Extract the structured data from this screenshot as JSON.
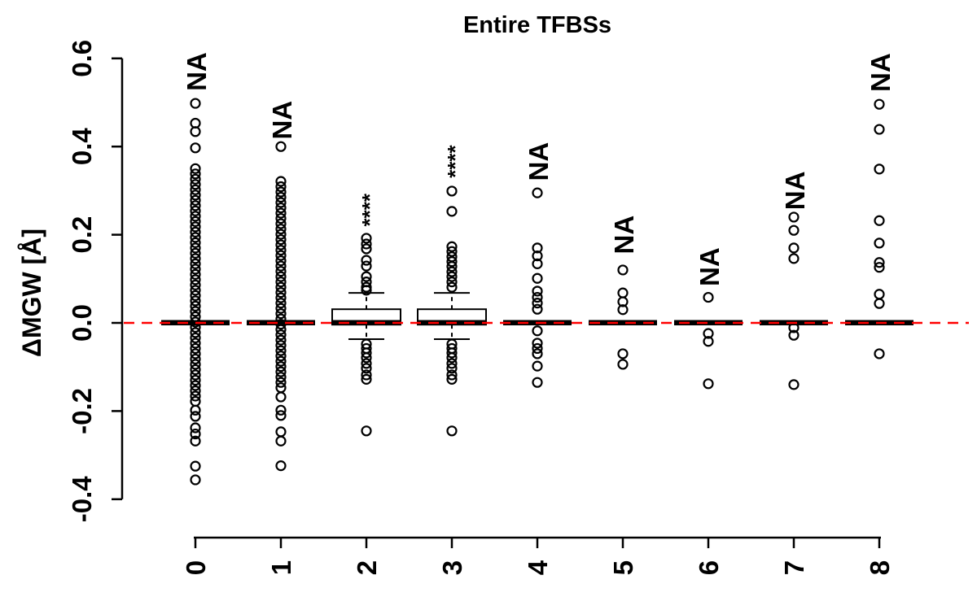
{
  "chart_data": {
    "type": "boxplot",
    "title": "Entire TFBSs",
    "ylabel": "ΔMGW [Å]",
    "xlabel": "",
    "ylim": [
      -0.45,
      0.62
    ],
    "yticks": [
      0.6,
      0.4,
      0.2,
      0.0,
      -0.2,
      -0.4
    ],
    "ytick_labels": [
      "0.6",
      "0.4",
      "0.2",
      "0.0",
      "-0.2",
      "-0.4"
    ],
    "categories": [
      "0",
      "1",
      "2",
      "3",
      "4",
      "5",
      "6",
      "7",
      "8"
    ],
    "grid": false,
    "legend": null,
    "zero_line": {
      "value": 0.0,
      "color": "#ff0000",
      "style": "dashed"
    },
    "colors": {
      "foreground": "#000000",
      "background": "#ffffff",
      "box_fill": "#ffffff"
    },
    "groups": [
      {
        "category": "0",
        "box": {
          "median": 0.0,
          "q1": 0.0,
          "q3": 0.0,
          "whisker_low": 0.0,
          "whisker_high": 0.0,
          "collapsed": true
        },
        "annotation": {
          "text": "NA",
          "y": 0.57
        },
        "outliers": [
          0.498,
          0.453,
          0.434,
          0.397,
          0.35,
          0.338,
          0.326,
          0.314,
          0.302,
          0.29,
          0.278,
          0.266,
          0.254,
          0.242,
          0.23,
          0.218,
          0.206,
          0.194,
          0.182,
          0.17,
          0.158,
          0.146,
          0.134,
          0.122,
          0.11,
          0.098,
          0.086,
          0.074,
          0.062,
          0.05,
          0.038,
          0.026,
          0.014,
          0.002,
          -0.01,
          -0.022,
          -0.034,
          -0.046,
          -0.058,
          -0.07,
          -0.082,
          -0.094,
          -0.106,
          -0.118,
          -0.13,
          -0.142,
          -0.154,
          -0.166,
          -0.178,
          -0.198,
          -0.212,
          -0.238,
          -0.252,
          -0.268,
          -0.325,
          -0.356
        ]
      },
      {
        "category": "1",
        "box": {
          "median": 0.0,
          "q1": 0.0,
          "q3": 0.0,
          "whisker_low": 0.0,
          "whisker_high": 0.0,
          "collapsed": true
        },
        "annotation": {
          "text": "NA",
          "y": 0.46
        },
        "outliers": [
          0.4,
          0.321,
          0.309,
          0.297,
          0.285,
          0.273,
          0.261,
          0.249,
          0.237,
          0.225,
          0.213,
          0.201,
          0.189,
          0.177,
          0.165,
          0.153,
          0.141,
          0.129,
          0.117,
          0.105,
          0.093,
          0.081,
          0.069,
          0.057,
          0.045,
          0.033,
          0.021,
          0.009,
          -0.003,
          -0.015,
          -0.027,
          -0.039,
          -0.051,
          -0.063,
          -0.075,
          -0.087,
          -0.099,
          -0.111,
          -0.123,
          -0.135,
          -0.147,
          -0.168,
          -0.198,
          -0.21,
          -0.247,
          -0.268,
          -0.324
        ]
      },
      {
        "category": "2",
        "box": {
          "median": 0.0,
          "q1": -0.004,
          "q3": 0.031,
          "whisker_low": -0.037,
          "whisker_high": 0.068,
          "collapsed": false
        },
        "annotation": {
          "text": "****",
          "y": 0.256
        },
        "outliers": [
          0.192,
          0.179,
          0.168,
          0.142,
          0.129,
          0.105,
          0.093,
          0.081,
          0.074,
          -0.048,
          -0.058,
          -0.068,
          -0.079,
          -0.092,
          -0.103,
          -0.118,
          -0.128,
          -0.245
        ]
      },
      {
        "category": "3",
        "box": {
          "median": 0.0,
          "q1": -0.004,
          "q3": 0.031,
          "whisker_low": -0.037,
          "whisker_high": 0.068,
          "collapsed": false
        },
        "annotation": {
          "text": "****",
          "y": 0.366
        },
        "outliers": [
          0.299,
          0.253,
          0.173,
          0.162,
          0.15,
          0.139,
          0.128,
          0.116,
          0.105,
          0.093,
          0.081,
          -0.048,
          -0.058,
          -0.068,
          -0.079,
          -0.092,
          -0.103,
          -0.118,
          -0.128,
          -0.245
        ]
      },
      {
        "category": "4",
        "box": {
          "median": 0.0,
          "q1": 0.0,
          "q3": 0.0,
          "whisker_low": 0.0,
          "whisker_high": 0.0,
          "collapsed": true
        },
        "annotation": {
          "text": "NA",
          "y": 0.366
        },
        "outliers": [
          0.295,
          0.17,
          0.152,
          0.134,
          0.101,
          0.072,
          0.058,
          0.045,
          0.031,
          -0.018,
          -0.046,
          -0.058,
          -0.07,
          -0.098,
          -0.135
        ]
      },
      {
        "category": "5",
        "box": {
          "median": 0.0,
          "q1": 0.0,
          "q3": 0.0,
          "whisker_low": 0.0,
          "whisker_high": 0.0,
          "collapsed": true
        },
        "annotation": {
          "text": "NA",
          "y": 0.2
        },
        "outliers": [
          0.12,
          0.068,
          0.048,
          0.03,
          -0.07,
          -0.094
        ]
      },
      {
        "category": "6",
        "box": {
          "median": 0.0,
          "q1": 0.0,
          "q3": 0.0,
          "whisker_low": 0.0,
          "whisker_high": 0.0,
          "collapsed": true
        },
        "annotation": {
          "text": "NA",
          "y": 0.127
        },
        "outliers": [
          0.058,
          -0.024,
          -0.042,
          -0.138
        ]
      },
      {
        "category": "7",
        "box": {
          "median": 0.0,
          "q1": 0.0,
          "q3": 0.0,
          "whisker_low": 0.0,
          "whisker_high": 0.0,
          "collapsed": true
        },
        "annotation": {
          "text": "NA",
          "y": 0.3
        },
        "outliers": [
          0.24,
          0.21,
          0.17,
          0.146,
          -0.011,
          -0.028,
          -0.14
        ]
      },
      {
        "category": "8",
        "box": {
          "median": 0.0,
          "q1": 0.0,
          "q3": 0.0,
          "whisker_low": 0.0,
          "whisker_high": 0.0,
          "collapsed": true
        },
        "annotation": {
          "text": "NA",
          "y": 0.568
        },
        "outliers": [
          0.496,
          0.439,
          0.349,
          0.232,
          0.181,
          0.137,
          0.126,
          0.065,
          0.044,
          -0.07
        ]
      }
    ]
  }
}
